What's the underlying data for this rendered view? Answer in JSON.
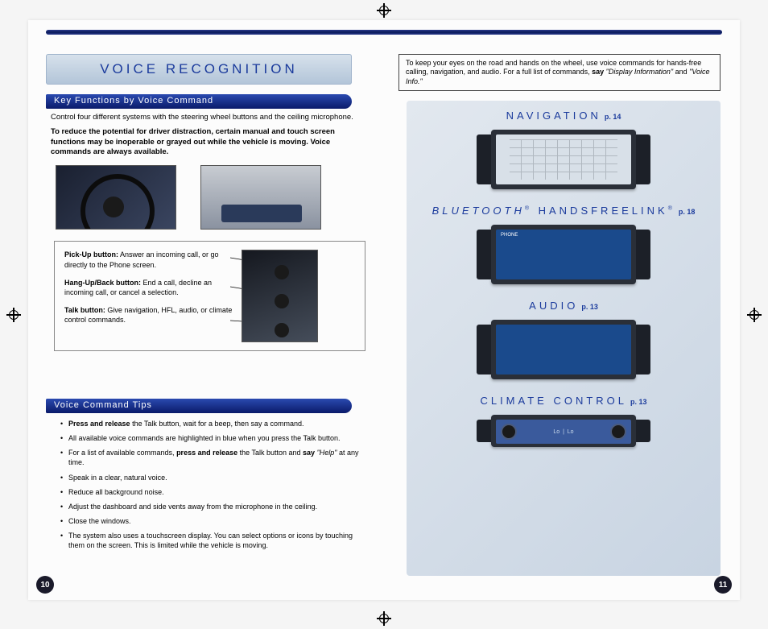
{
  "title": "VOICE RECOGNITION",
  "infoBox": {
    "pre": "To keep your eyes on the road and hands on the wheel, use voice commands for hands-free calling, navigation, and audio. For a full list of commands, ",
    "boldSay": "say",
    "italic1": "\"Display Information\"",
    "mid": " and ",
    "italic2": "\"Voice Info.\""
  },
  "section1": {
    "header": "Key Functions by Voice Command",
    "intro": "Control four different systems with the steering wheel buttons and the ceiling microphone.",
    "warning": "To reduce the potential for driver distraction, certain manual and touch screen functions may be inoperable or grayed out while the vehicle is moving.  Voice commands are always available.",
    "callouts": {
      "pickup": {
        "b": "Pick-Up button:",
        "t": " Answer an incoming call, or go directly to the Phone screen."
      },
      "hangup": {
        "b": "Hang-Up/Back button:",
        "t": " End a call, decline an incoming call, or cancel a selection."
      },
      "talk": {
        "b": "Talk button:",
        "t": " Give navigation, HFL, audio, or climate control commands."
      }
    }
  },
  "section2": {
    "header": "Voice Command Tips",
    "tips": [
      {
        "pre": "",
        "b": "Press and release",
        "post": " the Talk button, wait for a beep, then say a command."
      },
      {
        "pre": "All available voice commands are highlighted in blue when you press the Talk button.",
        "b": "",
        "post": ""
      },
      {
        "pre": "For a list of available commands, ",
        "b": "press and release",
        "post": " the Talk button and ",
        "b2": "say",
        "post2": " \"Help\" ",
        "i": "",
        "post3": "at any time."
      },
      {
        "pre": "Speak in a clear, natural voice.",
        "b": "",
        "post": ""
      },
      {
        "pre": "Reduce all background noise.",
        "b": "",
        "post": ""
      },
      {
        "pre": "Adjust the dashboard and side vents away from the microphone in the ceiling.",
        "b": "",
        "post": ""
      },
      {
        "pre": "Close the windows.",
        "b": "",
        "post": ""
      },
      {
        "pre": "The system also uses a touchscreen display.  You can select options or icons by touching them on the screen.  This is limited while the vehicle is moving.",
        "b": "",
        "post": ""
      }
    ]
  },
  "systems": [
    {
      "name": "NAVIGATION",
      "page": "p. 14",
      "cls": "screen-nav"
    },
    {
      "name": "BLUETOOTH",
      "sup": "®",
      "name2": " HANDSFREELINK",
      "sup2": "®",
      "page": "p. 18",
      "cls": "screen-bt",
      "italic1": true
    },
    {
      "name": "AUDIO",
      "page": "p. 13",
      "cls": "screen-audio"
    },
    {
      "name": "CLIMATE CONTROL",
      "page": "p. 13",
      "cls": "screen-climate"
    }
  ],
  "pageLeft": "10",
  "pageRight": "11",
  "colors": {
    "brandBlue": "#1a3a9c",
    "barDark": "#0a1a6a"
  }
}
